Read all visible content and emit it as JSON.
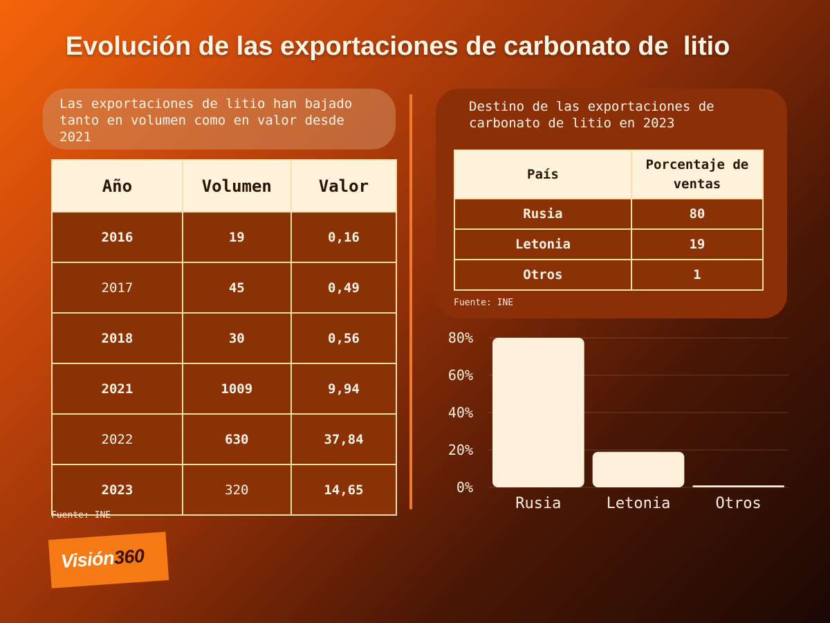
{
  "title": "Evolución de las exportaciones de carbonato de  litio",
  "left_panel": {
    "subtitle": "Las exportaciones de litio han bajado tanto en volumen como en valor desde 2021",
    "headers": [
      "Año",
      "Volumen",
      "Valor"
    ],
    "rows": [
      {
        "year": "2016",
        "volume": "19",
        "value": "0,16"
      },
      {
        "year": "2017",
        "volume": "45",
        "value": "0,49"
      },
      {
        "year": "2018",
        "volume": "30",
        "value": "0,56"
      },
      {
        "year": "2021",
        "volume": "1009",
        "value": "9,94"
      },
      {
        "year": "2022",
        "volume": "630",
        "value": "37,84"
      },
      {
        "year": "2023",
        "volume": "320",
        "value": "14,65"
      }
    ],
    "source": "Fuente: INE"
  },
  "right_panel": {
    "subtitle": "Destino de las exportaciones de carbonato de litio en 2023",
    "headers": [
      "País",
      "Porcentaje de ventas"
    ],
    "rows": [
      {
        "country": "Rusia",
        "percent": "80"
      },
      {
        "country": "Letonia",
        "percent": "19"
      },
      {
        "country": "Otros",
        "percent": "1"
      }
    ],
    "source": "Fuente: INE"
  },
  "logo": {
    "word": "Visión",
    "number": "360"
  },
  "colors": {
    "bar": "#fff0db",
    "background_start": "#f5650a",
    "background_end": "#1c0804"
  },
  "chart_data": [
    {
      "type": "table",
      "columns": [
        "Año",
        "Volumen",
        "Valor"
      ],
      "rows": [
        [
          "2016",
          19,
          0.16
        ],
        [
          "2017",
          45,
          0.49
        ],
        [
          "2018",
          30,
          0.56
        ],
        [
          "2021",
          1009,
          9.94
        ],
        [
          "2022",
          630,
          37.84
        ],
        [
          "2023",
          320,
          14.65
        ]
      ]
    },
    {
      "type": "bar",
      "categories": [
        "Rusia",
        "Letonia",
        "Otros"
      ],
      "values": [
        80,
        19,
        1
      ],
      "ylim": [
        0,
        80
      ],
      "yticks": [
        "0%",
        "20%",
        "40%",
        "60%",
        "80%"
      ],
      "ytick_values": [
        0,
        20,
        40,
        60,
        80
      ],
      "grid": true
    }
  ]
}
